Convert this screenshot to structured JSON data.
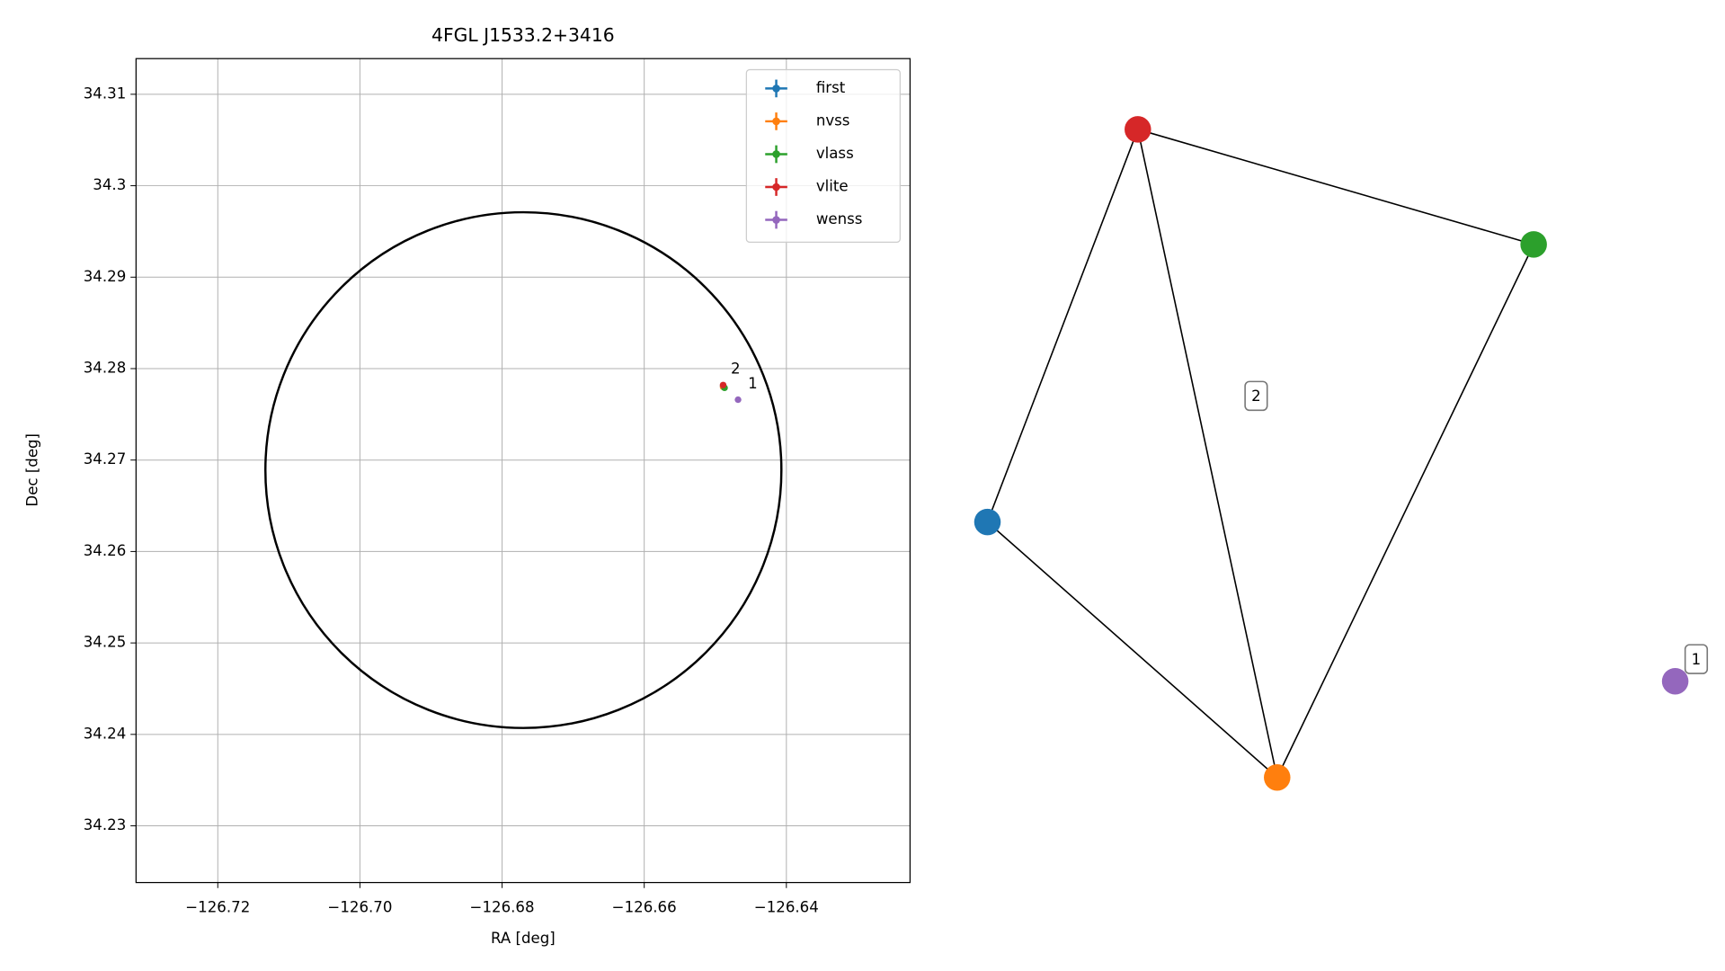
{
  "chart_data": [
    {
      "type": "scatter",
      "title": "4FGL J1533.2+3416",
      "xlabel": "RA [deg]",
      "ylabel": "Dec [deg]",
      "xlim": [
        -126.7315,
        -126.6226
      ],
      "ylim": [
        34.2238,
        34.3139
      ],
      "xticks": [
        {
          "value": -126.72,
          "label": "−126.72"
        },
        {
          "value": -126.7,
          "label": "−126.70"
        },
        {
          "value": -126.68,
          "label": "−126.68"
        },
        {
          "value": -126.66,
          "label": "−126.66"
        },
        {
          "value": -126.64,
          "label": "−126.64"
        }
      ],
      "yticks": [
        34.23,
        34.24,
        34.25,
        34.26,
        34.27,
        34.28,
        34.29,
        34.3,
        34.31
      ],
      "grid": true,
      "legend": "upper right",
      "region": {
        "ra": -126.677,
        "dec": 34.2689,
        "ra_radius": 0.0363,
        "dec_radius": 0.0282,
        "color": "#000000"
      },
      "series": [
        {
          "name": "first",
          "color": "#1f77b4",
          "x": [
            -126.6489
          ],
          "values": [
            34.2781
          ]
        },
        {
          "name": "nvss",
          "color": "#ff7f0e",
          "x": [
            -126.6489
          ],
          "values": [
            34.278
          ]
        },
        {
          "name": "vlass",
          "color": "#2ca02c",
          "x": [
            -126.6487
          ],
          "values": [
            34.2779
          ]
        },
        {
          "name": "vlite",
          "color": "#d62728",
          "x": [
            -126.6489
          ],
          "values": [
            34.2782
          ],
          "label": "2"
        },
        {
          "name": "wenss",
          "color": "#9467bd",
          "x": [
            -126.6468
          ],
          "values": [
            34.2766
          ],
          "label": "1"
        }
      ]
    },
    {
      "type": "graph",
      "nodes": [
        "#1f77b4",
        "#ff7f0e",
        "#2ca02c",
        "#d62728",
        "#9467bd"
      ],
      "edges": [
        [
          0,
          3
        ],
        [
          3,
          2
        ],
        [
          3,
          1
        ],
        [
          2,
          1
        ],
        [
          0,
          1
        ]
      ],
      "labels": [
        "2",
        "1"
      ]
    }
  ]
}
